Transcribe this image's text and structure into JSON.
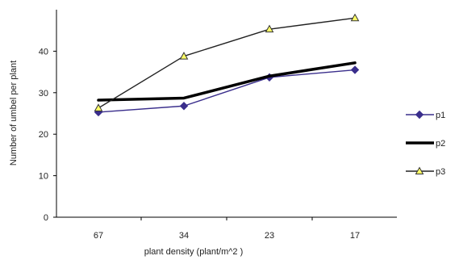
{
  "chart_data": {
    "type": "line",
    "categories": [
      "67",
      "34",
      "23",
      "17"
    ],
    "xlabel": "plant density (plant/m^2 )",
    "ylabel": "Number of umbel per plant",
    "ylim": [
      0,
      50
    ],
    "yticks": [
      "0",
      "10",
      "20",
      "30",
      "40"
    ],
    "grid": false,
    "legend_position": "right",
    "series": [
      {
        "name": "p1",
        "values": [
          25.3,
          26.8,
          33.7,
          35.5
        ],
        "color": "#3a2e8c",
        "marker": "diamond",
        "line_weight": "thin"
      },
      {
        "name": "p2",
        "values": [
          28.2,
          28.7,
          34.0,
          37.2
        ],
        "color": "#000000",
        "marker": "none",
        "line_weight": "thick"
      },
      {
        "name": "p3",
        "values": [
          26.3,
          38.8,
          45.3,
          48.0
        ],
        "color": "#222222",
        "marker": "triangle",
        "marker_fill": "#ffff66",
        "line_weight": "thin"
      }
    ]
  }
}
